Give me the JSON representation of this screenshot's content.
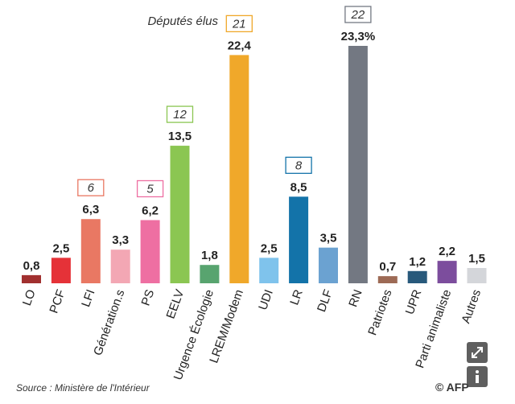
{
  "chart_data": {
    "type": "bar",
    "title": "",
    "xlabel": "",
    "ylabel": "",
    "ylim": [
      0,
      24
    ],
    "grid": false,
    "categories": [
      "LO",
      "PCF",
      "LFI",
      "Générations",
      "PS",
      "EELV",
      "Urgence Écologie",
      "LREM/Modem",
      "UDI",
      "LR",
      "DLF",
      "RN",
      "Patriotes",
      "UPR",
      "Parti animaliste",
      "Autres"
    ],
    "values": [
      0.8,
      2.5,
      6.3,
      3.3,
      6.2,
      13.5,
      1.8,
      22.4,
      2.5,
      8.5,
      3.5,
      23.3,
      0.7,
      1.2,
      2.2,
      1.5
    ],
    "value_labels": [
      "0,8",
      "2,5",
      "6,3",
      "3,3",
      "6,2",
      "13,5",
      "1,8",
      "22,4",
      "2,5",
      "8,5",
      "3,5",
      "23,3%",
      "0,7",
      "1,2",
      "2,2",
      "1,5"
    ],
    "category_labels": [
      "LO",
      "PCF",
      "LFI",
      "Génération.s",
      "PS",
      "EELV",
      "Urgence Écologie",
      "LREM/Modem",
      "UDI",
      "LR",
      "DLF",
      "RN",
      "Patriotes",
      "UPR",
      "Parti animaliste",
      "Autres"
    ],
    "colors": [
      "#a1302f",
      "#e53238",
      "#e97863",
      "#f3a7b4",
      "#ee6fa2",
      "#8bc652",
      "#58a46f",
      "#f0a82a",
      "#7fc3ec",
      "#1373a9",
      "#6ba2d1",
      "#737882",
      "#9d6a55",
      "#28597b",
      "#7c4d9d",
      "#d4d6da"
    ],
    "seats": [
      null,
      null,
      "6",
      null,
      "5",
      "12",
      null,
      "21",
      null,
      "8",
      null,
      "22",
      null,
      null,
      null,
      null
    ],
    "seat_box_colors": [
      null,
      null,
      "#e97863",
      null,
      "#ee6fa2",
      "#8bc652",
      null,
      "#f0a82a",
      null,
      "#1373a9",
      null,
      "#737882",
      null,
      null,
      null,
      null
    ],
    "seats_legend": "Députés élus"
  },
  "source": "Source : Ministère de l'Intérieur",
  "credit": "© AFP",
  "buttons": {
    "expand": "expand-icon",
    "info": "info-icon"
  }
}
